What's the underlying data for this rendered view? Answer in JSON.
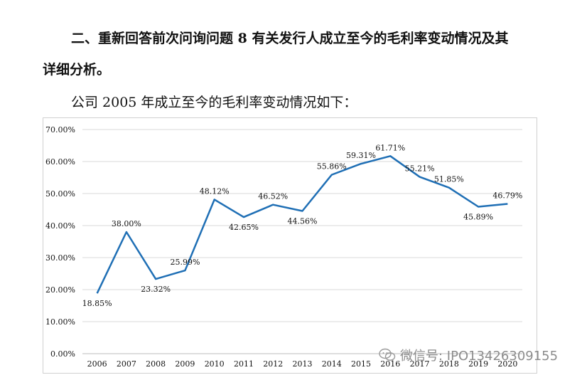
{
  "document": {
    "heading_line1": "二、重新回答前次问询问题 8 有关发行人成立至今的毛利率变动情况及其",
    "heading_line2": "详细分析。",
    "intro": "公司 2005 年成立至今的毛利率变动情况如下："
  },
  "watermark": {
    "text": "微信号: IPO13426309155",
    "icon": "wechat-icon"
  },
  "chart_data": {
    "type": "line",
    "title": "",
    "xlabel": "",
    "ylabel": "",
    "x": [
      "2006",
      "2007",
      "2008",
      "2009",
      "2010",
      "2011",
      "2012",
      "2013",
      "2014",
      "2015",
      "2016",
      "2017",
      "2018",
      "2019",
      "2020"
    ],
    "series": [
      {
        "values": [
          18.85,
          38.0,
          23.32,
          25.99,
          48.12,
          42.65,
          46.52,
          44.56,
          55.86,
          59.31,
          61.71,
          55.21,
          51.85,
          45.89,
          46.79
        ],
        "color": "#1f6fb5"
      }
    ],
    "data_labels": [
      "18.85%",
      "38.00%",
      "23.32%",
      "25.99%",
      "48.12%",
      "42.65%",
      "46.52%",
      "44.56%",
      "55.86%",
      "59.31%",
      "61.71%",
      "55.21%",
      "51.85%",
      "45.89%",
      "46.79%"
    ],
    "y_ticks": [
      "0.00%",
      "10.00%",
      "20.00%",
      "30.00%",
      "40.00%",
      "50.00%",
      "60.00%",
      "70.00%"
    ],
    "ylim": [
      0,
      70
    ],
    "grid": true,
    "legend": "none"
  }
}
